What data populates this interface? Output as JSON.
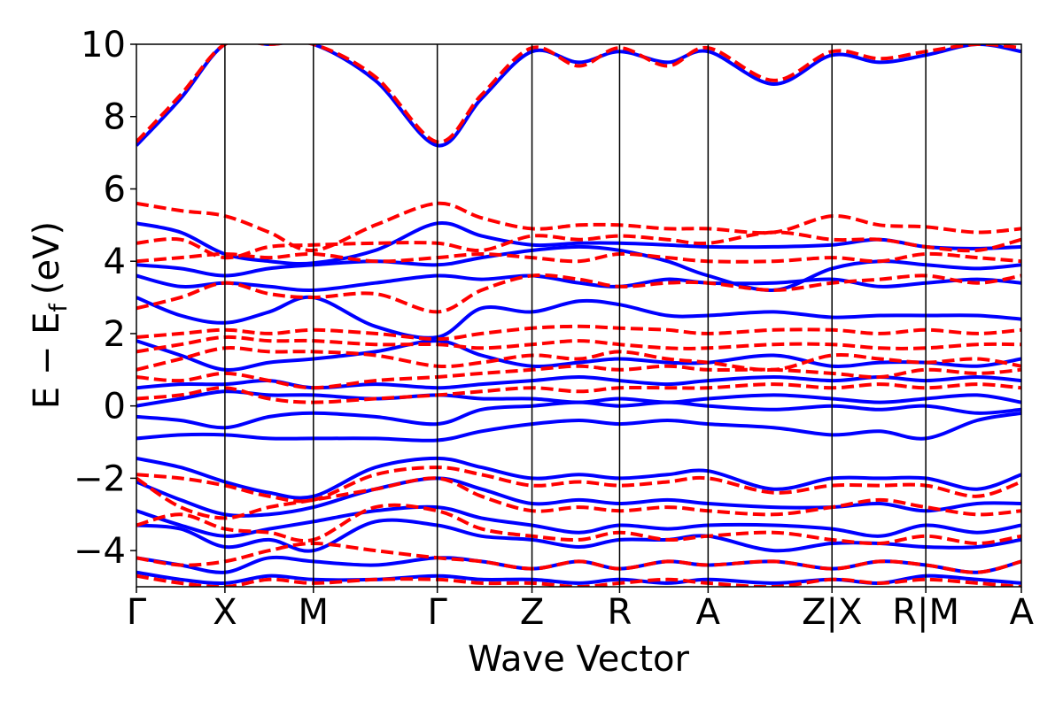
{
  "chart_data": {
    "type": "line",
    "title": "",
    "xlabel": "Wave Vector",
    "ylabel_parts": {
      "main": "E − E",
      "sub": "f",
      "unit": "(eV)"
    },
    "ylim": [
      -5,
      10
    ],
    "yticks": [
      10,
      8,
      6,
      4,
      2,
      0,
      -2,
      -4
    ],
    "ytick_labels": [
      "10",
      "8",
      "6",
      "4",
      "2",
      "0",
      "−2",
      "−4"
    ],
    "k_points": [
      {
        "label": "Γ",
        "x": 0.0
      },
      {
        "label": "X",
        "x": 0.1
      },
      {
        "label": "M",
        "x": 0.2
      },
      {
        "label": "Γ",
        "x": 0.34
      },
      {
        "label": "Z",
        "x": 0.447
      },
      {
        "label": "R",
        "x": 0.546
      },
      {
        "label": "A",
        "x": 0.646
      },
      {
        "label": "Z|X",
        "x": 0.786
      },
      {
        "label": "R|M",
        "x": 0.892
      },
      {
        "label": "A",
        "x": 1.0
      }
    ],
    "grid": false,
    "legend": "none",
    "series_style": [
      {
        "color": "#0000ff",
        "dash": "solid"
      },
      {
        "color": "#ff0000",
        "dash": "dashed"
      }
    ],
    "series": [
      {
        "x": [
          0.0,
          0.05,
          0.1,
          0.15,
          0.2,
          0.27,
          0.34,
          0.39,
          0.447,
          0.5,
          0.546,
          0.6,
          0.646,
          0.72,
          0.786,
          0.84,
          0.892,
          0.95,
          1.0
        ],
        "bands": [
          [
            7.2,
            8.5,
            10.0,
            10.0,
            10.0,
            9.0,
            7.2,
            8.5,
            9.8,
            9.5,
            9.8,
            9.5,
            9.8,
            8.9,
            9.7,
            9.5,
            9.7,
            10.0,
            9.8
          ],
          [
            5.05,
            4.8,
            4.2,
            4.0,
            3.95,
            4.3,
            5.05,
            4.7,
            4.45,
            4.5,
            4.5,
            4.45,
            4.4,
            4.4,
            4.45,
            4.6,
            4.4,
            4.35,
            4.4
          ],
          [
            3.9,
            3.8,
            3.6,
            3.8,
            3.9,
            4.0,
            3.9,
            4.1,
            4.3,
            4.4,
            4.3,
            4.0,
            3.6,
            3.2,
            3.8,
            4.0,
            3.9,
            3.8,
            3.9
          ],
          [
            3.6,
            3.3,
            3.4,
            3.3,
            3.2,
            3.4,
            3.6,
            3.5,
            3.6,
            3.4,
            3.3,
            3.5,
            3.4,
            3.4,
            3.5,
            3.3,
            3.4,
            3.5,
            3.4
          ],
          [
            3.0,
            2.5,
            2.3,
            2.6,
            3.0,
            2.2,
            1.9,
            2.7,
            2.6,
            2.9,
            2.8,
            2.5,
            2.5,
            2.6,
            2.45,
            2.5,
            2.5,
            2.5,
            2.4
          ],
          [
            1.8,
            1.4,
            1.0,
            1.2,
            1.3,
            1.5,
            1.8,
            1.4,
            1.1,
            1.2,
            1.3,
            1.2,
            1.2,
            1.4,
            1.1,
            1.2,
            1.2,
            1.1,
            1.3
          ],
          [
            0.5,
            0.6,
            0.6,
            0.7,
            0.5,
            0.6,
            0.5,
            0.6,
            0.7,
            0.8,
            0.7,
            0.6,
            0.7,
            0.8,
            0.7,
            0.8,
            0.7,
            0.8,
            0.7
          ],
          [
            0.0,
            0.2,
            0.4,
            0.3,
            0.3,
            0.2,
            0.3,
            0.2,
            0.2,
            0.1,
            0.2,
            0.1,
            0.2,
            0.3,
            0.2,
            0.1,
            0.2,
            0.3,
            0.1
          ],
          [
            -0.3,
            -0.4,
            -0.6,
            -0.3,
            -0.2,
            -0.3,
            -0.5,
            -0.1,
            0.0,
            0.1,
            0.0,
            0.1,
            0.0,
            -0.1,
            0.0,
            -0.1,
            0.0,
            -0.2,
            -0.1
          ],
          [
            -0.9,
            -0.8,
            -0.8,
            -0.9,
            -0.9,
            -0.9,
            -0.95,
            -0.7,
            -0.5,
            -0.4,
            -0.5,
            -0.4,
            -0.5,
            -0.6,
            -0.8,
            -0.7,
            -0.9,
            -0.4,
            -0.2
          ],
          [
            -1.45,
            -1.7,
            -2.1,
            -2.4,
            -2.5,
            -1.7,
            -1.45,
            -1.7,
            -2.0,
            -1.9,
            -2.0,
            -1.9,
            -1.8,
            -2.3,
            -2.0,
            -2.0,
            -2.0,
            -2.3,
            -1.9
          ],
          [
            -2.1,
            -2.6,
            -3.0,
            -3.0,
            -2.8,
            -2.3,
            -2.0,
            -2.3,
            -2.7,
            -2.6,
            -2.7,
            -2.6,
            -2.7,
            -2.8,
            -2.8,
            -2.7,
            -2.9,
            -2.7,
            -2.7
          ],
          [
            -2.9,
            -3.3,
            -3.6,
            -3.4,
            -3.2,
            -2.9,
            -2.8,
            -3.1,
            -3.3,
            -3.5,
            -3.3,
            -3.4,
            -3.3,
            -3.3,
            -3.4,
            -3.6,
            -3.3,
            -3.5,
            -3.3
          ],
          [
            -3.3,
            -3.4,
            -3.9,
            -3.7,
            -4.0,
            -3.2,
            -3.3,
            -3.6,
            -3.7,
            -3.9,
            -3.7,
            -3.7,
            -3.6,
            -4.0,
            -3.8,
            -3.8,
            -3.9,
            -3.9,
            -3.7
          ],
          [
            -4.2,
            -4.4,
            -4.6,
            -4.2,
            -4.3,
            -4.4,
            -4.2,
            -4.3,
            -4.5,
            -4.3,
            -4.5,
            -4.3,
            -4.4,
            -4.3,
            -4.5,
            -4.3,
            -4.4,
            -4.6,
            -4.3
          ],
          [
            -4.6,
            -4.8,
            -4.9,
            -4.7,
            -4.8,
            -4.8,
            -4.7,
            -4.8,
            -4.8,
            -4.9,
            -4.8,
            -4.9,
            -4.8,
            -4.9,
            -4.8,
            -4.9,
            -4.7,
            -4.8,
            -4.9
          ]
        ]
      },
      {
        "x": [
          0.0,
          0.05,
          0.1,
          0.15,
          0.2,
          0.27,
          0.34,
          0.39,
          0.447,
          0.5,
          0.546,
          0.6,
          0.646,
          0.72,
          0.786,
          0.84,
          0.892,
          0.95,
          1.0
        ],
        "bands": [
          [
            7.3,
            8.6,
            10.0,
            10.0,
            10.0,
            9.1,
            7.3,
            8.6,
            9.9,
            9.4,
            9.9,
            9.4,
            9.9,
            9.0,
            9.8,
            9.6,
            9.8,
            10.0,
            9.9
          ],
          [
            5.6,
            5.4,
            5.25,
            4.8,
            4.3,
            5.0,
            5.6,
            5.2,
            4.9,
            5.0,
            5.0,
            4.9,
            4.9,
            4.8,
            5.25,
            5.0,
            4.95,
            4.8,
            4.9
          ],
          [
            4.5,
            4.6,
            4.1,
            4.4,
            4.45,
            4.5,
            4.5,
            4.3,
            4.7,
            4.6,
            4.7,
            4.6,
            4.5,
            4.8,
            4.6,
            4.6,
            4.4,
            4.3,
            4.6
          ],
          [
            4.0,
            4.1,
            4.2,
            4.1,
            4.2,
            4.0,
            4.1,
            4.2,
            4.1,
            4.0,
            4.2,
            4.1,
            4.0,
            4.0,
            4.1,
            4.0,
            4.2,
            4.1,
            4.0
          ],
          [
            2.7,
            3.0,
            3.4,
            3.1,
            3.0,
            3.1,
            2.6,
            3.2,
            3.6,
            3.5,
            3.3,
            3.4,
            3.4,
            3.2,
            3.4,
            3.5,
            3.6,
            3.4,
            3.6
          ],
          [
            1.9,
            2.0,
            2.1,
            2.0,
            2.1,
            2.0,
            1.85,
            2.0,
            2.15,
            2.2,
            2.15,
            2.1,
            2.0,
            2.1,
            2.1,
            2.0,
            2.1,
            2.0,
            2.1
          ],
          [
            1.5,
            1.7,
            1.9,
            1.8,
            1.8,
            1.7,
            1.7,
            1.6,
            1.7,
            1.8,
            1.7,
            1.6,
            1.6,
            1.7,
            1.7,
            1.6,
            1.6,
            1.7,
            1.7
          ],
          [
            1.0,
            1.3,
            1.6,
            1.5,
            1.5,
            1.4,
            1.1,
            1.2,
            1.4,
            1.3,
            1.5,
            1.3,
            1.2,
            1.0,
            1.4,
            1.3,
            1.2,
            1.3,
            1.1
          ],
          [
            0.8,
            0.7,
            0.9,
            0.7,
            0.5,
            0.7,
            0.8,
            0.9,
            1.0,
            1.1,
            1.0,
            1.1,
            1.0,
            1.0,
            0.9,
            0.8,
            1.0,
            0.9,
            1.0
          ],
          [
            0.2,
            0.3,
            0.5,
            0.2,
            0.1,
            0.2,
            0.3,
            0.4,
            0.5,
            0.4,
            0.5,
            0.5,
            0.5,
            0.6,
            0.5,
            0.6,
            0.5,
            0.6,
            0.5
          ],
          [
            -1.9,
            -2.0,
            -2.2,
            -2.5,
            -2.6,
            -1.9,
            -1.7,
            -1.9,
            -2.2,
            -2.1,
            -2.2,
            -2.1,
            -2.0,
            -2.4,
            -2.2,
            -2.2,
            -2.2,
            -2.5,
            -2.1
          ],
          [
            -2.0,
            -2.8,
            -3.1,
            -2.8,
            -2.6,
            -2.3,
            -2.0,
            -2.5,
            -2.9,
            -2.8,
            -2.9,
            -2.8,
            -2.9,
            -3.0,
            -2.8,
            -2.6,
            -2.8,
            -3.0,
            -2.9
          ],
          [
            -3.3,
            -3.0,
            -3.4,
            -3.5,
            -3.7,
            -2.8,
            -2.9,
            -3.4,
            -3.6,
            -3.7,
            -3.5,
            -3.7,
            -3.6,
            -3.5,
            -3.7,
            -3.8,
            -3.6,
            -3.8,
            -3.6
          ],
          [
            -4.2,
            -4.4,
            -4.3,
            -4.0,
            -3.8,
            -4.0,
            -4.2,
            -4.3,
            -4.5,
            -4.3,
            -4.5,
            -4.3,
            -4.4,
            -4.3,
            -4.5,
            -4.3,
            -4.4,
            -4.6,
            -4.3
          ],
          [
            -4.7,
            -4.9,
            -5.0,
            -4.8,
            -4.9,
            -4.8,
            -4.8,
            -4.9,
            -4.9,
            -5.0,
            -4.9,
            -4.8,
            -4.9,
            -5.0,
            -4.8,
            -4.9,
            -4.8,
            -4.9,
            -5.0
          ]
        ]
      }
    ]
  }
}
